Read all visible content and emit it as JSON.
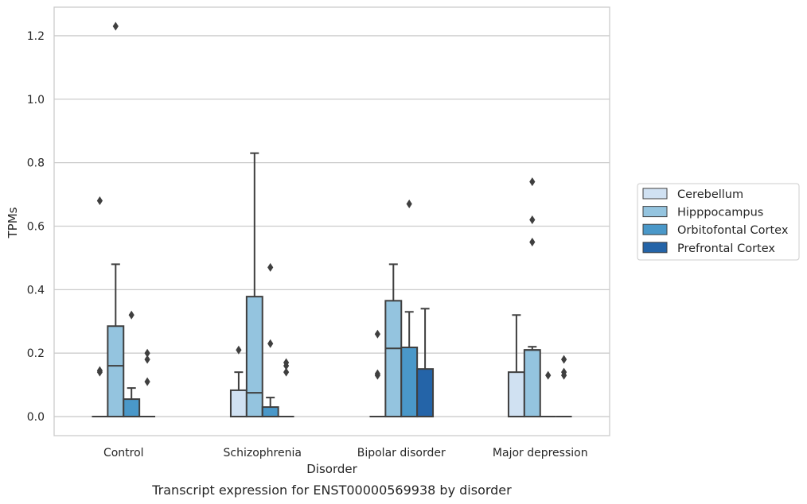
{
  "caption": "Transcript expression for ENST00000569938 by disorder",
  "chart_data": {
    "type": "box",
    "title": "",
    "xlabel": "Disorder",
    "ylabel": "TPMs",
    "ylim": [
      -0.06,
      1.29
    ],
    "yticks": [
      "0.0",
      "0.2",
      "0.4",
      "0.6",
      "0.8",
      "1.0",
      "1.2"
    ],
    "grid": "horizontal",
    "legend_position": "right",
    "categories": [
      "Control",
      "Schizophrenia",
      "Bipolar disorder",
      "Major depression"
    ],
    "series": [
      {
        "name": "Cerebellum",
        "color": "#d0e1f2",
        "boxes": [
          {
            "q1": 0,
            "median": 0,
            "q3": 0,
            "whislo": 0,
            "whishi": 0,
            "fliers": [
              0.14,
              0.145,
              0.68
            ]
          },
          {
            "q1": 0,
            "median": 0,
            "q3": 0.083,
            "whislo": 0,
            "whishi": 0.14,
            "fliers": [
              0.21
            ]
          },
          {
            "q1": 0,
            "median": 0,
            "q3": 0,
            "whislo": 0,
            "whishi": 0,
            "fliers": [
              0.13,
              0.135,
              0.26
            ]
          },
          {
            "q1": 0,
            "median": 0,
            "q3": 0.14,
            "whislo": 0,
            "whishi": 0.32,
            "fliers": []
          }
        ]
      },
      {
        "name": "Hipppocampus",
        "color": "#94c4df",
        "boxes": [
          {
            "q1": 0,
            "median": 0.16,
            "q3": 0.285,
            "whislo": 0,
            "whishi": 0.48,
            "fliers": [
              1.23
            ]
          },
          {
            "q1": 0,
            "median": 0.075,
            "q3": 0.378,
            "whislo": 0,
            "whishi": 0.83,
            "fliers": []
          },
          {
            "q1": 0,
            "median": 0.215,
            "q3": 0.365,
            "whislo": 0,
            "whishi": 0.48,
            "fliers": []
          },
          {
            "q1": 0,
            "median": 0.21,
            "q3": 0.21,
            "whislo": 0,
            "whishi": 0.22,
            "fliers": [
              0.55,
              0.62,
              0.74
            ]
          }
        ]
      },
      {
        "name": "Orbitofontal Cortex",
        "color": "#4a98c9",
        "boxes": [
          {
            "q1": 0,
            "median": 0,
            "q3": 0.055,
            "whislo": 0,
            "whishi": 0.09,
            "fliers": [
              0.32
            ]
          },
          {
            "q1": 0,
            "median": 0,
            "q3": 0.03,
            "whislo": 0,
            "whishi": 0.06,
            "fliers": [
              0.23,
              0.47
            ]
          },
          {
            "q1": 0,
            "median": 0.218,
            "q3": 0.218,
            "whislo": 0,
            "whishi": 0.33,
            "fliers": [
              0.67
            ]
          },
          {
            "q1": 0,
            "median": 0,
            "q3": 0,
            "whislo": 0,
            "whishi": 0,
            "fliers": [
              0.13
            ]
          }
        ]
      },
      {
        "name": "Prefrontal Cortex",
        "color": "#2464a8",
        "boxes": [
          {
            "q1": 0,
            "median": 0,
            "q3": 0,
            "whislo": 0,
            "whishi": 0,
            "fliers": [
              0.11,
              0.18,
              0.2
            ]
          },
          {
            "q1": 0,
            "median": 0,
            "q3": 0,
            "whislo": 0,
            "whishi": 0,
            "fliers": [
              0.14,
              0.16,
              0.17
            ]
          },
          {
            "q1": 0,
            "median": 0,
            "q3": 0.15,
            "whislo": 0,
            "whishi": 0.34,
            "fliers": []
          },
          {
            "q1": 0,
            "median": 0,
            "q3": 0,
            "whislo": 0,
            "whishi": 0,
            "fliers": [
              0.13,
              0.14,
              0.18
            ]
          }
        ]
      }
    ]
  }
}
